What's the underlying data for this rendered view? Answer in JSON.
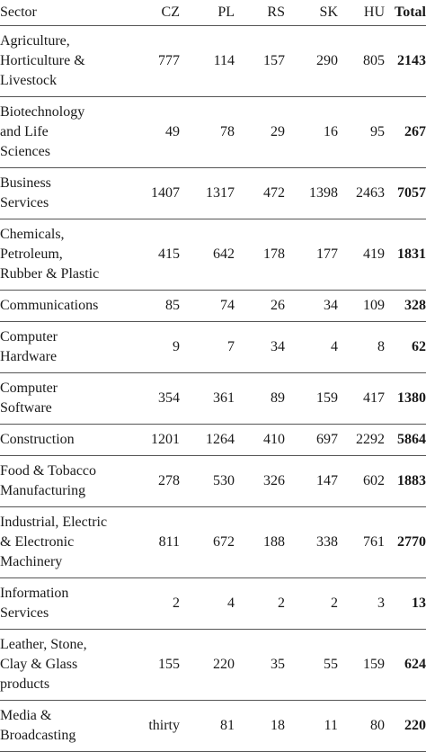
{
  "table": {
    "headers": {
      "sector": "Sector",
      "cz": "CZ",
      "pl": "PL",
      "rs": "RS",
      "sk": "SK",
      "hu": "HU",
      "total": "Total"
    },
    "rows": [
      {
        "sector": [
          "Agriculture,",
          "Horticulture &",
          "Livestock"
        ],
        "cz": "777",
        "pl": "114",
        "rs": "157",
        "sk": "290",
        "hu": "805",
        "total": "2143"
      },
      {
        "sector": [
          "Biotechnology",
          "and Life",
          "Sciences"
        ],
        "cz": "49",
        "pl": "78",
        "rs": "29",
        "sk": "16",
        "hu": "95",
        "total": "267"
      },
      {
        "sector": [
          "Business",
          "Services"
        ],
        "cz": "1407",
        "pl": "1317",
        "rs": "472",
        "sk": "1398",
        "hu": "2463",
        "total": "7057"
      },
      {
        "sector": [
          "Chemicals,",
          "Petroleum,",
          "Rubber & Plastic"
        ],
        "cz": "415",
        "pl": "642",
        "rs": "178",
        "sk": "177",
        "hu": "419",
        "total": "1831"
      },
      {
        "sector": [
          "Communications"
        ],
        "cz": "85",
        "pl": "74",
        "rs": "26",
        "sk": "34",
        "hu": "109",
        "total": "328"
      },
      {
        "sector": [
          "Computer",
          "Hardware"
        ],
        "cz": "9",
        "pl": "7",
        "rs": "34",
        "sk": "4",
        "hu": "8",
        "total": "62"
      },
      {
        "sector": [
          "Computer",
          "Software"
        ],
        "cz": "354",
        "pl": "361",
        "rs": "89",
        "sk": "159",
        "hu": "417",
        "total": "1380"
      },
      {
        "sector": [
          "Construction"
        ],
        "cz": "1201",
        "pl": "1264",
        "rs": "410",
        "sk": "697",
        "hu": "2292",
        "total": "5864"
      },
      {
        "sector": [
          "Food & Tobacco",
          "Manufacturing"
        ],
        "cz": "278",
        "pl": "530",
        "rs": "326",
        "sk": "147",
        "hu": "602",
        "total": "1883"
      },
      {
        "sector": [
          "Industrial, Electric",
          "& Electronic",
          "Machinery"
        ],
        "cz": "811",
        "pl": "672",
        "rs": "188",
        "sk": "338",
        "hu": "761",
        "total": "2770"
      },
      {
        "sector": [
          "Information",
          "Services"
        ],
        "cz": "2",
        "pl": "4",
        "rs": "2",
        "sk": "2",
        "hu": "3",
        "total": "13"
      },
      {
        "sector": [
          "Leather, Stone,",
          "Clay & Glass",
          "products"
        ],
        "cz": "155",
        "pl": "220",
        "rs": "35",
        "sk": "55",
        "hu": "159",
        "total": "624"
      },
      {
        "sector": [
          "Media &",
          "Broadcasting"
        ],
        "cz": "thirty",
        "pl": "81",
        "rs": "18",
        "sk": "11",
        "hu": "80",
        "total": "220"
      }
    ]
  }
}
